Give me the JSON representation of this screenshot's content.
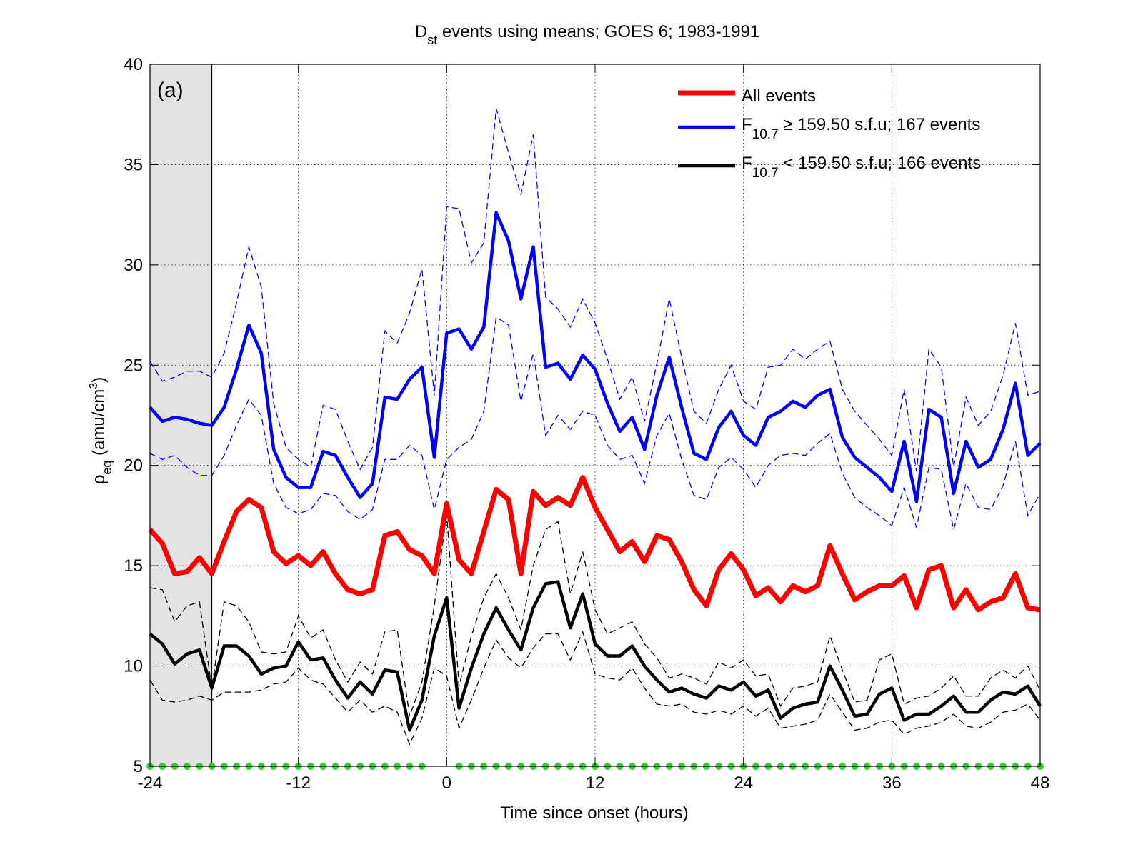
{
  "chart_data": {
    "type": "line",
    "title_main": "D",
    "title_sub": "st",
    "title_rest": " events using means; GOES 6; 1983-1991",
    "panel_label": "(a)",
    "xlabel": "Time since onset (hours)",
    "ylabel_main": "ρ",
    "ylabel_sub": "eq",
    "ylabel_rest": " (amu/cm",
    "ylabel_sup": "3",
    "ylabel_close": ")",
    "xlim": [
      -24,
      48
    ],
    "ylim": [
      5,
      40
    ],
    "xticks": [
      -24,
      -12,
      0,
      12,
      24,
      36,
      48
    ],
    "yticks": [
      5,
      10,
      15,
      20,
      25,
      30,
      35,
      40
    ],
    "grid": true,
    "legend_placement": "top-right",
    "shaded_region": [
      -24,
      -19
    ],
    "x": [
      -24,
      -23,
      -22,
      -21,
      -20,
      -19,
      -18,
      -17,
      -16,
      -15,
      -14,
      -13,
      -12,
      -11,
      -10,
      -9,
      -8,
      -7,
      -6,
      -5,
      -4,
      -3,
      -2,
      -1,
      0,
      1,
      2,
      3,
      4,
      5,
      6,
      7,
      8,
      9,
      10,
      11,
      12,
      13,
      14,
      15,
      16,
      17,
      18,
      19,
      20,
      21,
      22,
      23,
      24,
      25,
      26,
      27,
      28,
      29,
      30,
      31,
      32,
      33,
      34,
      35,
      36,
      37,
      38,
      39,
      40,
      41,
      42,
      43,
      44,
      45,
      46,
      47,
      48
    ],
    "series": [
      {
        "name": "All events",
        "color": "#ff0000",
        "width": 7,
        "values": [
          16.8,
          16.1,
          14.6,
          14.7,
          15.4,
          14.6,
          16.2,
          17.7,
          18.3,
          17.9,
          15.7,
          15.1,
          15.5,
          15.0,
          15.7,
          14.6,
          13.8,
          13.6,
          13.8,
          16.5,
          16.7,
          15.8,
          15.5,
          14.6,
          18.1,
          15.3,
          14.6,
          16.7,
          18.8,
          18.3,
          14.6,
          18.7,
          18.0,
          18.4,
          18.0,
          19.4,
          17.9,
          16.8,
          15.7,
          16.2,
          15.2,
          16.5,
          16.3,
          15.2,
          13.8,
          13.0,
          14.8,
          15.6,
          14.8,
          13.5,
          13.9,
          13.2,
          14.0,
          13.7,
          14.0,
          16.0,
          14.6,
          13.3,
          13.7,
          14.0,
          14.0,
          14.5,
          12.9,
          14.8,
          15.0,
          12.9,
          13.8,
          12.8,
          13.2,
          13.4,
          14.6,
          12.9,
          12.8
        ]
      },
      {
        "name": "F10.7 ≥ 159.50 s.f.u; 167 events",
        "legend_main": "F",
        "legend_sub": "10.7",
        "legend_rest": " ≥ 159.50 s.f.u; 167 events",
        "color": "#0000ff",
        "width": 4.5,
        "values": [
          22.9,
          22.2,
          22.4,
          22.3,
          22.1,
          22.0,
          22.9,
          24.8,
          27.0,
          25.6,
          20.8,
          19.4,
          18.9,
          18.9,
          20.7,
          20.5,
          19.4,
          18.4,
          19.1,
          23.4,
          23.3,
          24.3,
          24.9,
          20.4,
          26.6,
          26.8,
          25.8,
          26.9,
          32.6,
          31.2,
          28.3,
          30.9,
          24.9,
          25.1,
          24.3,
          25.5,
          24.8,
          23.1,
          21.7,
          22.4,
          20.8,
          23.5,
          25.4,
          22.9,
          20.6,
          20.3,
          21.9,
          22.7,
          21.5,
          21.0,
          22.4,
          22.7,
          23.2,
          22.9,
          23.5,
          23.8,
          21.4,
          20.4,
          19.9,
          19.4,
          18.7,
          21.2,
          18.2,
          22.8,
          22.4,
          18.6,
          21.2,
          19.9,
          20.3,
          21.8,
          24.1,
          20.5,
          21.1
        ]
      },
      {
        "name": "F10.7 < 159.50 s.f.u; 166 events",
        "legend_main": "F",
        "legend_sub": "10.7",
        "legend_rest": " < 159.50 s.f.u; 166 events",
        "color": "#000000",
        "width": 4.5,
        "values": [
          11.6,
          11.1,
          10.1,
          10.6,
          10.8,
          8.9,
          11.0,
          11.0,
          10.5,
          9.6,
          9.9,
          10.0,
          11.2,
          10.3,
          10.4,
          9.3,
          8.4,
          9.2,
          8.6,
          9.8,
          9.7,
          6.8,
          8.3,
          11.5,
          13.4,
          7.9,
          9.9,
          11.6,
          12.9,
          11.8,
          10.8,
          12.9,
          14.1,
          14.2,
          11.9,
          13.6,
          11.1,
          10.5,
          10.5,
          11.0,
          10.0,
          9.3,
          8.7,
          8.9,
          8.6,
          8.4,
          9.0,
          8.8,
          9.2,
          8.5,
          8.8,
          7.4,
          7.9,
          8.1,
          8.2,
          10.0,
          8.8,
          7.5,
          7.6,
          8.6,
          8.9,
          7.3,
          7.6,
          7.6,
          8.0,
          8.5,
          7.7,
          7.7,
          8.3,
          8.7,
          8.6,
          9.0,
          8.0
        ]
      }
    ],
    "bands": [
      {
        "color": "#0000ff",
        "upper": [
          25.2,
          24.2,
          24.4,
          24.7,
          24.7,
          24.4,
          25.6,
          28.1,
          30.9,
          28.9,
          23.1,
          20.9,
          20.3,
          19.9,
          23.0,
          22.8,
          21.2,
          19.8,
          20.9,
          26.7,
          26.1,
          27.6,
          29.8,
          23.5,
          32.9,
          32.8,
          30.1,
          31.1,
          37.8,
          35.6,
          33.5,
          36.5,
          28.4,
          27.8,
          26.9,
          28.3,
          27.1,
          25.3,
          23.3,
          24.4,
          22.2,
          25.1,
          28.3,
          25.4,
          22.7,
          22.1,
          23.8,
          25.0,
          23.2,
          22.8,
          24.9,
          25.0,
          25.8,
          25.3,
          25.8,
          26.2,
          23.8,
          22.7,
          22.0,
          21.3,
          20.5,
          23.8,
          19.7,
          25.8,
          24.9,
          19.9,
          23.4,
          22.0,
          22.7,
          24.5,
          27.1,
          23.5,
          23.7
        ]
      },
      {
        "color": "#0000ff",
        "lower": [
          20.6,
          20.3,
          20.5,
          19.9,
          19.5,
          19.5,
          20.5,
          22.0,
          23.3,
          22.5,
          19.1,
          17.9,
          17.6,
          17.8,
          18.6,
          18.5,
          17.7,
          17.3,
          17.8,
          20.3,
          20.3,
          21.0,
          20.5,
          17.8,
          20.3,
          20.9,
          21.3,
          22.7,
          27.4,
          27.0,
          23.2,
          25.6,
          21.5,
          22.5,
          21.8,
          22.7,
          22.5,
          21.0,
          20.3,
          20.5,
          19.1,
          21.5,
          22.6,
          20.3,
          18.5,
          18.3,
          19.9,
          20.4,
          19.8,
          18.9,
          20.0,
          20.5,
          20.6,
          20.5,
          21.1,
          21.6,
          19.6,
          18.4,
          17.9,
          17.5,
          17.0,
          18.9,
          16.9,
          19.9,
          19.8,
          16.8,
          19.1,
          17.9,
          17.8,
          19.0,
          21.2,
          17.5,
          18.6
        ]
      },
      {
        "color": "#000000",
        "upper": [
          13.9,
          13.8,
          12.2,
          13.0,
          13.2,
          8.9,
          13.2,
          13.0,
          12.2,
          10.7,
          10.6,
          10.7,
          12.5,
          11.4,
          11.8,
          10.3,
          9.2,
          10.2,
          9.6,
          11.7,
          11.8,
          7.5,
          9.2,
          13.0,
          17.6,
          9.0,
          11.5,
          13.4,
          14.6,
          13.4,
          11.8,
          15.0,
          16.8,
          17.2,
          13.6,
          15.7,
          12.8,
          11.6,
          11.9,
          12.2,
          11.1,
          10.4,
          9.4,
          9.6,
          9.4,
          9.1,
          10.2,
          9.9,
          10.3,
          9.5,
          9.6,
          8.0,
          8.9,
          9.0,
          9.2,
          11.5,
          9.8,
          8.2,
          8.3,
          10.3,
          10.6,
          8.1,
          8.4,
          8.5,
          8.9,
          9.5,
          8.5,
          8.5,
          9.4,
          9.8,
          9.4,
          10.0,
          8.8
        ]
      },
      {
        "color": "#000000",
        "lower": [
          9.3,
          8.3,
          8.2,
          8.3,
          8.5,
          8.3,
          8.7,
          8.7,
          8.7,
          8.8,
          9.1,
          9.2,
          9.9,
          9.3,
          9.1,
          8.4,
          7.7,
          8.3,
          7.7,
          8.0,
          7.7,
          6.1,
          7.4,
          9.9,
          9.5,
          6.9,
          8.3,
          9.9,
          11.3,
          10.4,
          9.9,
          10.9,
          11.6,
          11.6,
          10.3,
          11.7,
          9.6,
          9.4,
          9.3,
          9.9,
          8.9,
          8.1,
          8.0,
          8.1,
          7.7,
          7.6,
          7.8,
          7.6,
          8.0,
          7.5,
          7.9,
          6.9,
          7.0,
          7.1,
          7.3,
          8.6,
          7.7,
          6.8,
          6.9,
          7.2,
          7.3,
          6.6,
          6.9,
          7.0,
          7.2,
          7.6,
          7.0,
          6.9,
          7.2,
          7.7,
          7.8,
          8.1,
          7.3
        ]
      }
    ],
    "markers": {
      "y": 5,
      "color": "#33cc33",
      "x": [
        -24,
        -23,
        -22,
        -21,
        -20,
        -19,
        -18,
        -17,
        -16,
        -15,
        -14,
        -13,
        -12,
        -11,
        -10,
        -9,
        -8,
        -7,
        -6,
        -5,
        -4,
        -3,
        -2,
        1,
        2,
        3,
        4,
        5,
        6,
        7,
        8,
        9,
        10,
        11,
        12,
        13,
        14,
        15,
        16,
        17,
        18,
        19,
        20,
        21,
        22,
        23,
        24,
        25,
        26,
        27,
        28,
        29,
        30,
        31,
        32,
        33,
        34,
        35,
        36,
        37,
        38,
        39,
        40,
        41,
        42,
        43,
        44,
        45,
        46,
        47,
        48
      ]
    }
  }
}
